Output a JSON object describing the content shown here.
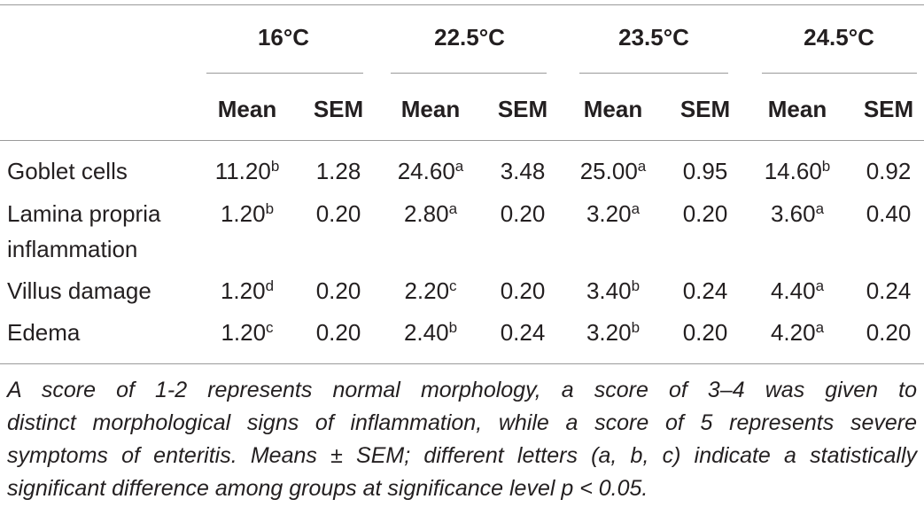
{
  "table": {
    "groups": [
      "16°C",
      "22.5°C",
      "23.5°C",
      "24.5°C"
    ],
    "columns": [
      "Mean",
      "SEM",
      "Mean",
      "SEM",
      "Mean",
      "SEM",
      "Mean",
      "SEM"
    ],
    "rows": [
      {
        "label": "Goblet cells",
        "cells": [
          {
            "value": "11.20",
            "sup": "b"
          },
          {
            "value": "1.28"
          },
          {
            "value": "24.60",
            "sup": "a"
          },
          {
            "value": "3.48"
          },
          {
            "value": "25.00",
            "sup": "a"
          },
          {
            "value": "0.95"
          },
          {
            "value": "14.60",
            "sup": "b"
          },
          {
            "value": "0.92"
          }
        ]
      },
      {
        "label": "Lamina propria inflammation",
        "cells": [
          {
            "value": "1.20",
            "sup": "b"
          },
          {
            "value": "0.20"
          },
          {
            "value": "2.80",
            "sup": "a"
          },
          {
            "value": "0.20"
          },
          {
            "value": "3.20",
            "sup": "a"
          },
          {
            "value": "0.20"
          },
          {
            "value": "3.60",
            "sup": "a"
          },
          {
            "value": "0.40"
          }
        ]
      },
      {
        "label": "Villus damage",
        "cells": [
          {
            "value": "1.20",
            "sup": "d"
          },
          {
            "value": "0.20"
          },
          {
            "value": "2.20",
            "sup": "c"
          },
          {
            "value": "0.20"
          },
          {
            "value": "3.40",
            "sup": "b"
          },
          {
            "value": "0.24"
          },
          {
            "value": "4.40",
            "sup": "a"
          },
          {
            "value": "0.24"
          }
        ]
      },
      {
        "label": "Edema",
        "cells": [
          {
            "value": "1.20",
            "sup": "c"
          },
          {
            "value": "0.20"
          },
          {
            "value": "2.40",
            "sup": "b"
          },
          {
            "value": "0.24"
          },
          {
            "value": "3.20",
            "sup": "b"
          },
          {
            "value": "0.20"
          },
          {
            "value": "4.20",
            "sup": "a"
          },
          {
            "value": "0.20"
          }
        ]
      }
    ],
    "footnote": [
      "A score of 1-2 represents normal morphology, a score of 3–4 was given to",
      "distinct morphological signs of inflammation, while a score of 5 represents severe",
      "symptoms of enteritis. Means ± SEM; different letters (a, b, c) indicate a statistically",
      "significant difference among groups at significance level p < 0.05."
    ]
  }
}
